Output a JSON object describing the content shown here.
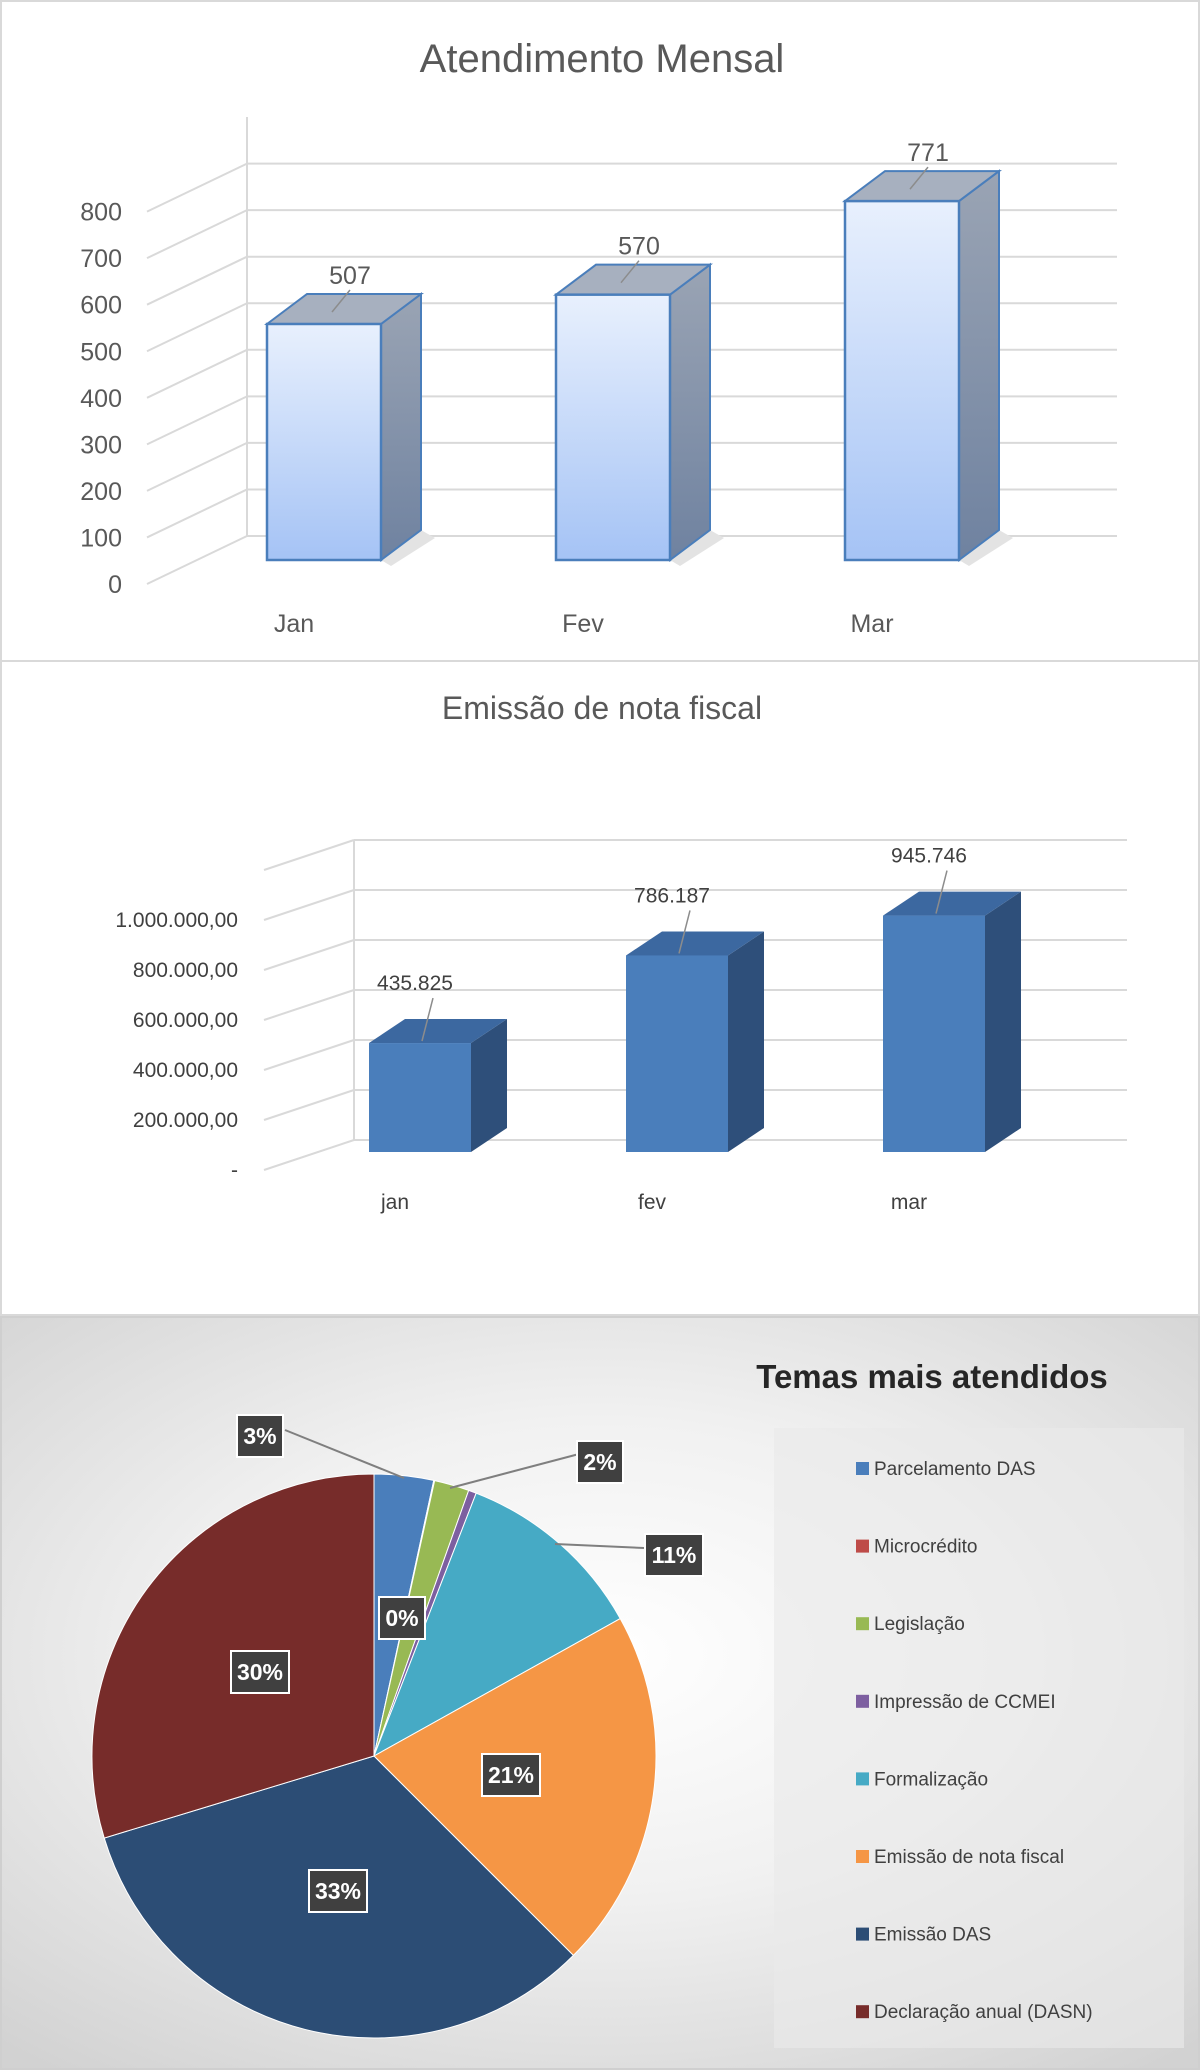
{
  "chart_data": [
    {
      "type": "bar",
      "title": "Atendimento Mensal",
      "categories": [
        "Jan",
        "Fev",
        "Mar"
      ],
      "values": [
        507,
        570,
        771
      ],
      "data_labels": [
        "507",
        "570",
        "771"
      ],
      "y_ticks": [
        "0",
        "100",
        "200",
        "300",
        "400",
        "500",
        "600",
        "700",
        "800"
      ],
      "ylim": [
        0,
        900
      ],
      "grid": true,
      "style": "3d",
      "colors": {
        "bar_top": "#a5c3f5",
        "bar_bottom": "#e8f0fd",
        "bar_side": "#7d8fa8",
        "bar_edge": "#4a7ebb",
        "grid": "#d9d9d9",
        "text": "#595959"
      }
    },
    {
      "type": "bar",
      "title": "Emissão de nota fiscal",
      "categories": [
        "jan",
        "fev",
        "mar"
      ],
      "values": [
        435825,
        786187,
        945746
      ],
      "data_labels": [
        "435.825",
        "786.187",
        "945.746"
      ],
      "y_ticks": [
        "-",
        "200.000,00",
        "400.000,00",
        "600.000,00",
        "800.000,00",
        "1.000.000,00"
      ],
      "ylim": [
        0,
        1200000
      ],
      "grid": true,
      "style": "3d",
      "colors": {
        "bar_front": "#4a7ebb",
        "bar_side": "#2e4f7a",
        "bar_top": "#3c68a0",
        "grid": "#d9d9d9",
        "text": "#595959"
      }
    },
    {
      "type": "pie",
      "title": "Temas mais atendidos",
      "legend_position": "right",
      "slices": [
        {
          "name": "Parcelamento DAS",
          "value": 3.4,
          "label": "3%",
          "color": "#4a7ebb"
        },
        {
          "name": "Microcrédito",
          "value": 0.05,
          "label": "",
          "color": "#be4b48"
        },
        {
          "name": "Legislação",
          "value": 2.0,
          "label": "2%",
          "color": "#98b954"
        },
        {
          "name": "Impressão de CCMEI",
          "value": 0.45,
          "label": "0%",
          "color": "#7d5fa0"
        },
        {
          "name": "Formalização",
          "value": 11.0,
          "label": "11%",
          "color": "#46aac5"
        },
        {
          "name": "Emissão de nota fiscal",
          "value": 20.6,
          "label": "21%",
          "color": "#f59645"
        },
        {
          "name": "Emissão DAS",
          "value": 32.8,
          "label": "33%",
          "color": "#2c4d75"
        },
        {
          "name": "Declaração anual (DASN)",
          "value": 29.7,
          "label": "30%",
          "color": "#772c2a"
        }
      ]
    }
  ]
}
